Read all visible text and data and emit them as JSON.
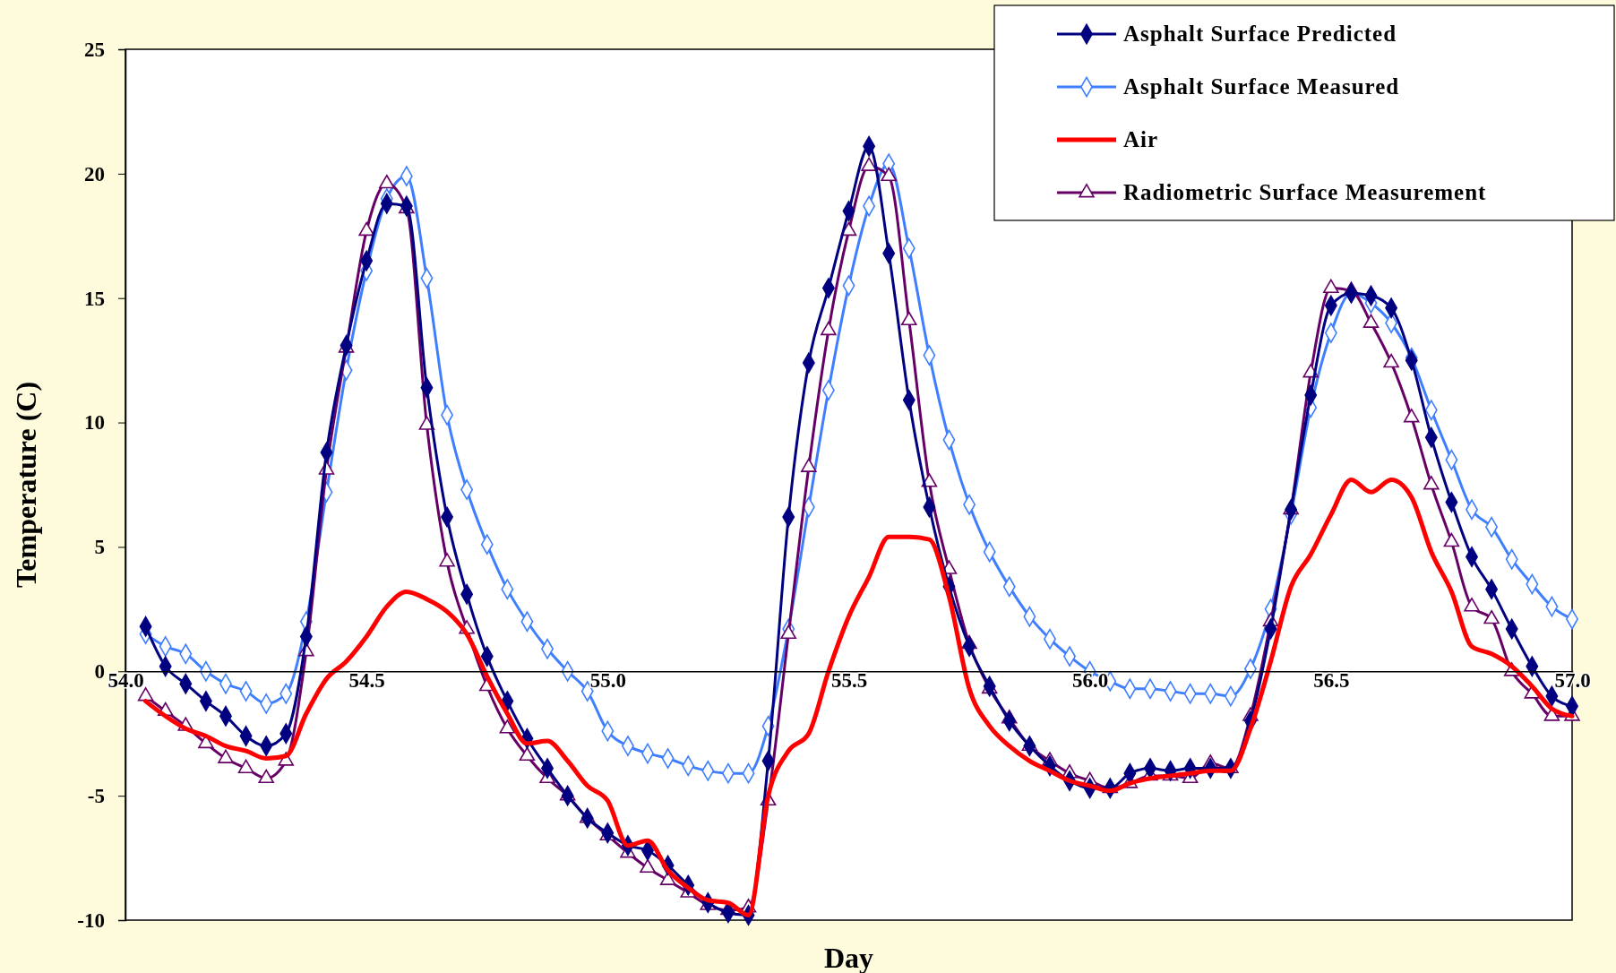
{
  "chart_data": {
    "type": "line",
    "xlabel": "Day",
    "ylabel": "Temperature (C)",
    "x": [
      54.042,
      54.083,
      54.125,
      54.167,
      54.208,
      54.25,
      54.292,
      54.333,
      54.375,
      54.417,
      54.458,
      54.5,
      54.542,
      54.583,
      54.625,
      54.667,
      54.708,
      54.75,
      54.792,
      54.833,
      54.875,
      54.917,
      54.958,
      55.0,
      55.042,
      55.083,
      55.125,
      55.167,
      55.208,
      55.25,
      55.292,
      55.333,
      55.375,
      55.417,
      55.458,
      55.5,
      55.542,
      55.583,
      55.625,
      55.667,
      55.708,
      55.75,
      55.792,
      55.833,
      55.875,
      55.917,
      55.958,
      56.0,
      56.042,
      56.083,
      56.125,
      56.167,
      56.208,
      56.25,
      56.292,
      56.333,
      56.375,
      56.417,
      56.458,
      56.5,
      56.542,
      56.583,
      56.625,
      56.667,
      56.708,
      56.75,
      56.792,
      56.833,
      56.875,
      56.917,
      56.958,
      57.0
    ],
    "series": [
      {
        "name": "Asphalt Surface Predicted",
        "color": "#000080",
        "marker": "diamond",
        "values": [
          1.8,
          0.2,
          -0.5,
          -1.2,
          -1.8,
          -2.6,
          -3.0,
          -2.5,
          1.4,
          8.8,
          13.1,
          16.5,
          18.8,
          18.7,
          11.4,
          6.2,
          3.1,
          0.6,
          -1.2,
          -2.7,
          -3.9,
          -5.0,
          -5.9,
          -6.5,
          -7.0,
          -7.2,
          -7.8,
          -8.6,
          -9.3,
          -9.7,
          -9.8,
          -3.6,
          6.2,
          12.4,
          15.4,
          18.5,
          21.1,
          16.8,
          10.9,
          6.6,
          3.4,
          1.0,
          -0.6,
          -2.0,
          -3.0,
          -3.8,
          -4.4,
          -4.7,
          -4.7,
          -4.1,
          -3.9,
          -4.0,
          -3.9,
          -3.9,
          -3.9,
          -2.0,
          1.7,
          6.5,
          11.1,
          14.7,
          15.2,
          15.1,
          14.6,
          12.5,
          9.4,
          6.8,
          4.6,
          3.3,
          1.7,
          0.2,
          -1.0,
          -1.4
        ]
      },
      {
        "name": "Asphalt Surface Measured",
        "color": "#3f7fff",
        "marker": "diamond",
        "values": [
          1.5,
          1.0,
          0.7,
          0.0,
          -0.5,
          -0.8,
          -1.3,
          -0.9,
          2.0,
          7.2,
          12.1,
          16.1,
          19.0,
          19.9,
          15.8,
          10.3,
          7.3,
          5.1,
          3.3,
          2.0,
          0.9,
          0.0,
          -0.8,
          -2.4,
          -3.0,
          -3.3,
          -3.5,
          -3.8,
          -4.0,
          -4.1,
          -4.1,
          -2.2,
          1.7,
          6.6,
          11.3,
          15.5,
          18.7,
          20.4,
          17.0,
          12.7,
          9.3,
          6.7,
          4.8,
          3.4,
          2.2,
          1.3,
          0.6,
          0.0,
          -0.4,
          -0.7,
          -0.7,
          -0.8,
          -0.9,
          -0.9,
          -1.0,
          0.1,
          2.5,
          6.3,
          10.6,
          13.6,
          15.2,
          14.8,
          14.0,
          12.6,
          10.5,
          8.5,
          6.5,
          5.8,
          4.5,
          3.5,
          2.6,
          2.1
        ]
      },
      {
        "name": "Air",
        "color": "#ff0000",
        "marker": "none",
        "values": [
          -1.2,
          -1.8,
          -2.3,
          -2.6,
          -3.0,
          -3.2,
          -3.5,
          -3.4,
          -1.7,
          -0.3,
          0.4,
          1.4,
          2.6,
          3.2,
          2.9,
          2.4,
          1.5,
          -0.2,
          -1.7,
          -2.9,
          -2.8,
          -3.6,
          -4.6,
          -5.2,
          -7.0,
          -6.8,
          -8.0,
          -8.7,
          -9.2,
          -9.3,
          -9.8,
          -5.0,
          -3.2,
          -2.5,
          0.0,
          2.2,
          3.8,
          5.4,
          5.4,
          5.3,
          3.0,
          -0.7,
          -2.2,
          -3.0,
          -3.6,
          -4.0,
          -4.4,
          -4.6,
          -4.8,
          -4.5,
          -4.3,
          -4.2,
          -4.1,
          -4.0,
          -4.0,
          -2.3,
          0.4,
          3.4,
          4.7,
          6.3,
          7.7,
          7.2,
          7.7,
          7.0,
          4.8,
          3.2,
          1.0,
          0.7,
          0.2,
          -0.6,
          -1.5,
          -1.8
        ]
      },
      {
        "name": "Radiometric Surface Measurement",
        "color": "#660066",
        "marker": "triangle",
        "values": [
          -1.0,
          -1.6,
          -2.2,
          -2.9,
          -3.5,
          -3.9,
          -4.3,
          -3.6,
          0.8,
          8.1,
          13.0,
          17.7,
          19.6,
          18.6,
          9.9,
          4.4,
          1.7,
          -0.6,
          -2.3,
          -3.4,
          -4.3,
          -5.0,
          -5.9,
          -6.6,
          -7.3,
          -7.9,
          -8.4,
          -8.9,
          -9.4,
          -9.6,
          -9.5,
          -5.2,
          1.5,
          8.2,
          13.7,
          17.7,
          20.3,
          19.9,
          14.1,
          7.6,
          4.1,
          1.1,
          -0.7,
          -1.9,
          -3.0,
          -3.6,
          -4.1,
          -4.4,
          -4.7,
          -4.5,
          -4.2,
          -4.2,
          -4.3,
          -3.7,
          -3.9,
          -1.8,
          2.0,
          6.5,
          12.0,
          15.4,
          15.3,
          14.0,
          12.4,
          10.2,
          7.5,
          5.2,
          2.6,
          2.1,
          0.0,
          -0.9,
          -1.8,
          -1.8
        ]
      }
    ],
    "xlim": [
      54,
      57
    ],
    "xticks": [
      {
        "value": 54,
        "label": "54.0"
      },
      {
        "value": 54.5,
        "label": "54.5"
      },
      {
        "value": 55,
        "label": "55.0"
      },
      {
        "value": 55.5,
        "label": "55.5"
      },
      {
        "value": 56,
        "label": "56.0"
      },
      {
        "value": 56.5,
        "label": "56.5"
      },
      {
        "value": 57,
        "label": "57.0"
      }
    ],
    "ylim": [
      -10,
      25
    ],
    "yticks": [
      -10,
      -5,
      0,
      5,
      10,
      15,
      20,
      25
    ],
    "grid": false,
    "legend": "top right",
    "line_style": "solid"
  }
}
